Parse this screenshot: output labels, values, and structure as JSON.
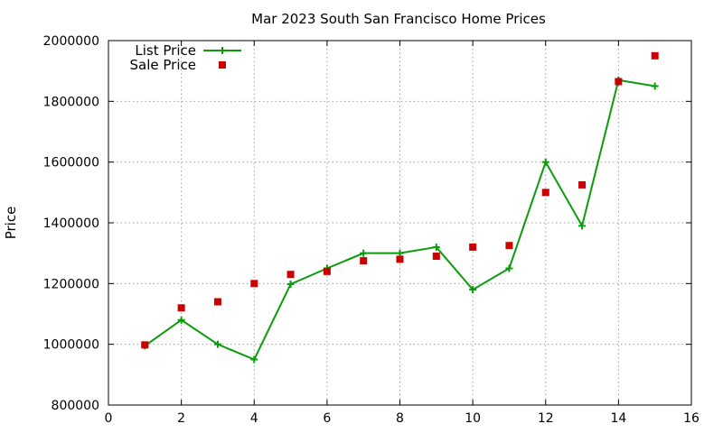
{
  "chart_data": {
    "type": "line",
    "title": "Mar 2023 South San Francisco Home Prices",
    "xlabel": "",
    "ylabel": "Price",
    "xlim": [
      0,
      16
    ],
    "ylim": [
      800000,
      2000000
    ],
    "x_ticks": [
      "0",
      "2",
      "4",
      "6",
      "8",
      "10",
      "12",
      "14",
      "16"
    ],
    "y_ticks": [
      "800000",
      "1000000",
      "1200000",
      "1400000",
      "1600000",
      "1800000",
      "2000000"
    ],
    "grid": true,
    "legend_position": "top-left",
    "series": [
      {
        "name": "List Price",
        "style": "line-plus",
        "color": "#0b9b0b",
        "x": [
          1,
          2,
          3,
          4,
          5,
          6,
          7,
          8,
          9,
          10,
          11,
          12,
          13,
          14,
          15
        ],
        "y": [
          995000,
          1080000,
          1000000,
          950000,
          1198000,
          1250000,
          1300000,
          1300000,
          1320000,
          1180000,
          1250000,
          1600000,
          1390000,
          1870000,
          1850000
        ]
      },
      {
        "name": "Sale Price",
        "style": "square-points",
        "color": "#cc0000",
        "x": [
          1,
          2,
          3,
          4,
          5,
          6,
          7,
          8,
          9,
          10,
          11,
          12,
          13,
          14,
          15
        ],
        "y": [
          998000,
          1120000,
          1140000,
          1200000,
          1230000,
          1240000,
          1275000,
          1280000,
          1290000,
          1320000,
          1325000,
          1500000,
          1525000,
          1865000,
          1950000
        ]
      }
    ]
  }
}
